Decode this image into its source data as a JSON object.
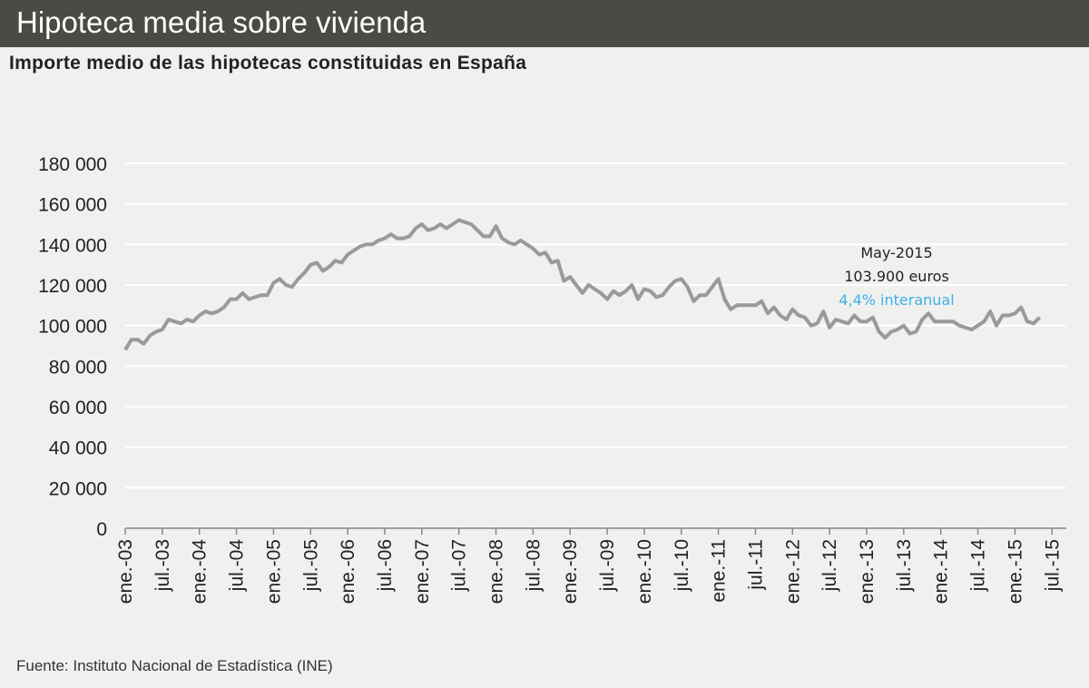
{
  "header": {
    "title": "Hipoteca media sobre vivienda"
  },
  "chart_data": {
    "type": "line",
    "title": "Importe medio de las hipotecas constituidas  en España",
    "source": "Fuente: Instituto Nacional de Estadística (INE)",
    "x_start": "2003-01",
    "x_end": "2015-05",
    "x_tick_labels": [
      "ene.-03",
      "jul.-03",
      "ene.-04",
      "jul.-04",
      "ene.-05",
      "jul.-05",
      "ene.-06",
      "jul.-06",
      "ene.-07",
      "jul.-07",
      "ene.-08",
      "jul.-08",
      "ene.-09",
      "jul.-09",
      "ene.-10",
      "jul.-10",
      "ene.-11",
      "jul.-11",
      "ene.-12",
      "jul.-12",
      "ene.-13",
      "jul.-13",
      "ene.-14",
      "jul.-14",
      "ene.-15",
      "jul.-15"
    ],
    "y_tick_labels": [
      "0",
      "20 000",
      "40 000",
      "60 000",
      "80 000",
      "100 000",
      "120 000",
      "140 000",
      "160 000",
      "180 000"
    ],
    "ylim": [
      0,
      180000
    ],
    "grid": true,
    "line_color": "#9a9a9a",
    "values": [
      88000,
      93000,
      93000,
      91000,
      95000,
      97000,
      98000,
      103000,
      102000,
      101000,
      103000,
      102000,
      105000,
      107000,
      106000,
      107000,
      109000,
      113000,
      113000,
      116000,
      113000,
      114000,
      115000,
      115000,
      121000,
      123000,
      120000,
      119000,
      123000,
      126000,
      130000,
      131000,
      127000,
      129000,
      132000,
      131000,
      135000,
      137000,
      139000,
      140000,
      140000,
      142000,
      143000,
      145000,
      143000,
      143000,
      144000,
      148000,
      150000,
      147000,
      148000,
      150000,
      148000,
      150000,
      152000,
      151000,
      150000,
      147000,
      144000,
      144000,
      149000,
      143000,
      141000,
      140000,
      142000,
      140000,
      138000,
      135000,
      136000,
      131000,
      132000,
      122000,
      124000,
      120000,
      116000,
      120000,
      118000,
      116000,
      113000,
      117000,
      115000,
      117000,
      120000,
      113000,
      118000,
      117000,
      114000,
      115000,
      119000,
      122000,
      123000,
      119000,
      112000,
      115000,
      115000,
      119000,
      123000,
      113000,
      108000,
      110000,
      110000,
      110000,
      110000,
      112000,
      106000,
      109000,
      105000,
      103000,
      108000,
      105000,
      104000,
      100000,
      101000,
      107000,
      99000,
      103000,
      102000,
      101000,
      105000,
      102000,
      102000,
      104000,
      97000,
      94000,
      97000,
      98000,
      100000,
      96000,
      97000,
      103000,
      106000,
      102000,
      102000,
      102000,
      102000,
      100000,
      99000,
      98000,
      100000,
      102000,
      107000,
      100000,
      105000,
      105000,
      106000,
      109000,
      102000,
      101000,
      104000
    ],
    "annotation": {
      "line1": "May-2015",
      "line2": "103.900 euros",
      "line3": "4,4% interanual",
      "line3_color": "#3fb0e8"
    }
  }
}
